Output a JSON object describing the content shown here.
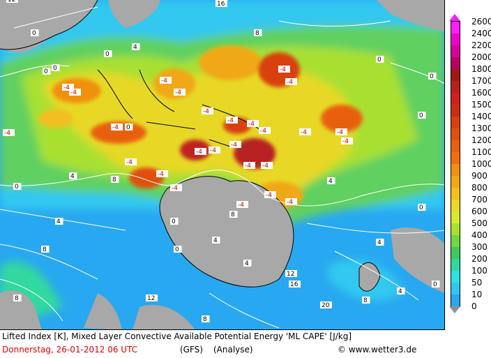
{
  "map": {
    "title_line": "Lifted Index [K], Mixed Layer Convective Available Potential Energy 'ML CAPE' [J/kg]",
    "date": "Donnerstag, 26-01-2012  06 UTC",
    "model": "(GFS)",
    "analysis": "(Analyse)",
    "copyright": "© www.wetter3.de",
    "colors": {
      "land": "#a8a8a8",
      "ocean_low": "#28a8f0",
      "ocean_mid": "#30c8f0",
      "tropics_green": "#60d060",
      "tropics_yellow": "#c8e840",
      "storm_orange": "#e08020",
      "storm_red": "#c02020"
    }
  },
  "legend": {
    "levels": [
      "2600",
      "2400",
      "2200",
      "2000",
      "1800",
      "1700",
      "1600",
      "1500",
      "1400",
      "1300",
      "1200",
      "1100",
      "1000",
      "900",
      "800",
      "700",
      "600",
      "500",
      "400",
      "300",
      "200",
      "100",
      "50",
      "10",
      "0"
    ],
    "colors": [
      "#ff20ff",
      "#f000c8",
      "#d80098",
      "#b80060",
      "#a01818",
      "#b82020",
      "#d02020",
      "#c83010",
      "#d84010",
      "#e05010",
      "#e86010",
      "#f07010",
      "#f09010",
      "#f0a818",
      "#f0c020",
      "#e8d828",
      "#d8e830",
      "#a8e030",
      "#70d840",
      "#40c860",
      "#30d8a0",
      "#30e0e0",
      "#30c8f0",
      "#28a8f0",
      "#2080f0"
    ]
  },
  "isolines": {
    "tags": [
      "0",
      "-4",
      "4",
      "8",
      "12",
      "16",
      "20"
    ]
  }
}
